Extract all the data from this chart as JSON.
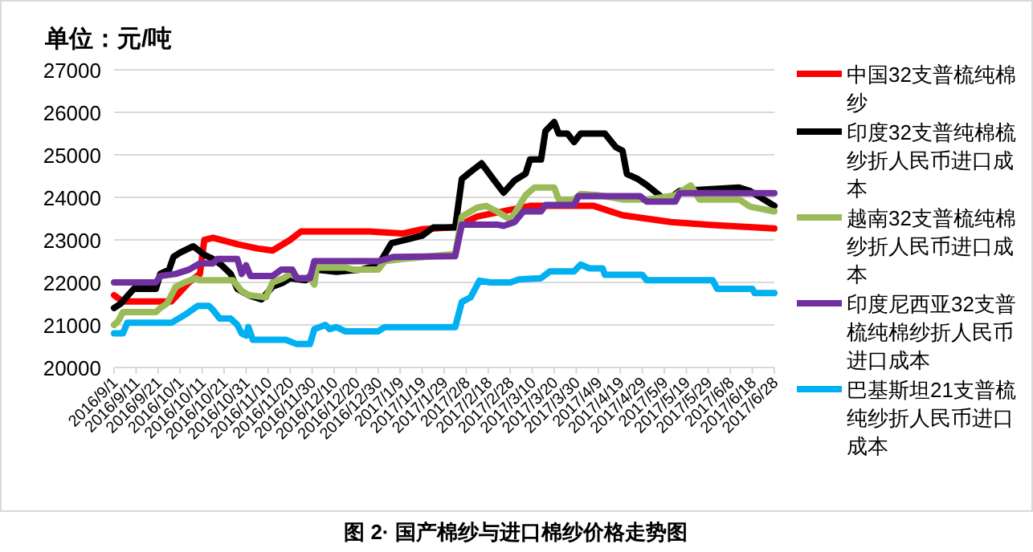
{
  "chart_data": {
    "type": "line",
    "title": "图 2· 国产棉纱与进口棉纱价格走势图",
    "ylabel": "单位：元/吨",
    "xlim": [
      "2016-09-01",
      "2017-06-28"
    ],
    "xticks": [
      {
        "value": "2016-09-01",
        "label": "2016/9/1"
      },
      {
        "value": "2016-09-11",
        "label": "2016/9/11"
      },
      {
        "value": "2016-09-21",
        "label": "2016/9/21"
      },
      {
        "value": "2016-10-01",
        "label": "2016/10/1"
      },
      {
        "value": "2016-10-11",
        "label": "2016/10/11"
      },
      {
        "value": "2016-10-21",
        "label": "2016/10/21"
      },
      {
        "value": "2016-10-31",
        "label": "2016/10/31"
      },
      {
        "value": "2016-11-10",
        "label": "2016/11/10"
      },
      {
        "value": "2016-11-20",
        "label": "2016/11/20"
      },
      {
        "value": "2016-11-30",
        "label": "2016/11/30"
      },
      {
        "value": "2016-12-10",
        "label": "2016/12/10"
      },
      {
        "value": "2016-12-20",
        "label": "2016/12/20"
      },
      {
        "value": "2016-12-30",
        "label": "2016/12/30"
      },
      {
        "value": "2017-01-09",
        "label": "2017/1/9"
      },
      {
        "value": "2017-01-19",
        "label": "2017/1/19"
      },
      {
        "value": "2017-01-29",
        "label": "2017/1/29"
      },
      {
        "value": "2017-02-08",
        "label": "2017/2/8"
      },
      {
        "value": "2017-02-18",
        "label": "2017/2/18"
      },
      {
        "value": "2017-02-28",
        "label": "2017/2/28"
      },
      {
        "value": "2017-03-10",
        "label": "2017/3/10"
      },
      {
        "value": "2017-03-20",
        "label": "2017/3/20"
      },
      {
        "value": "2017-03-30",
        "label": "2017/3/30"
      },
      {
        "value": "2017-04-09",
        "label": "2017/4/9"
      },
      {
        "value": "2017-04-19",
        "label": "2017/4/19"
      },
      {
        "value": "2017-04-29",
        "label": "2017/4/29"
      },
      {
        "value": "2017-05-09",
        "label": "2017/5/9"
      },
      {
        "value": "2017-05-19",
        "label": "2017/5/19"
      },
      {
        "value": "2017-05-29",
        "label": "2017/5/29"
      },
      {
        "value": "2017-06-08",
        "label": "2017/6/8"
      },
      {
        "value": "2017-06-18",
        "label": "2017/6/18"
      },
      {
        "value": "2017-06-28",
        "label": "2017/6/28"
      }
    ],
    "ylim": [
      20000,
      27000
    ],
    "yticks": [
      20000,
      21000,
      22000,
      23000,
      24000,
      25000,
      26000,
      27000
    ],
    "grid": "y",
    "legend": "right",
    "marker": "none",
    "line_style": "solid",
    "series": [
      {
        "name": "中国32支普梳纯棉纱",
        "color": "#ff0000",
        "x": [
          "2016-09-01",
          "2016-09-05",
          "2016-09-27",
          "2016-10-05",
          "2016-10-10",
          "2016-10-12",
          "2016-10-16",
          "2016-10-27",
          "2016-11-05",
          "2016-11-12",
          "2016-11-20",
          "2016-11-25",
          "2016-12-26",
          "2017-01-10",
          "2017-01-19",
          "2017-02-03",
          "2017-02-13",
          "2017-03-09",
          "2017-04-07",
          "2017-04-20",
          "2017-05-12",
          "2017-05-31",
          "2017-06-28"
        ],
        "values": [
          21700,
          21550,
          21550,
          22000,
          22200,
          23000,
          23050,
          22900,
          22800,
          22750,
          23000,
          23200,
          23200,
          23150,
          23250,
          23300,
          23550,
          23800,
          23800,
          23580,
          23420,
          23350,
          23270
        ]
      },
      {
        "name": "印度32支普纯棉梳纱折人民币进口成本",
        "color": "#000000",
        "x": [
          "2016-09-01",
          "2016-09-04",
          "2016-09-10",
          "2016-09-20",
          "2016-09-22",
          "2016-09-26",
          "2016-09-28",
          "2016-10-01",
          "2016-10-07",
          "2016-10-12",
          "2016-10-16",
          "2016-10-20",
          "2016-10-24",
          "2016-10-27",
          "2016-11-01",
          "2016-11-07",
          "2016-11-12",
          "2016-11-17",
          "2016-11-20",
          "2016-11-27",
          "2016-12-02",
          "2016-12-11",
          "2016-12-22",
          "2016-12-30",
          "2017-01-05",
          "2017-01-19",
          "2017-01-24",
          "2017-02-03",
          "2017-02-06",
          "2017-02-10",
          "2017-02-15",
          "2017-02-20",
          "2017-02-25",
          "2017-03-02",
          "2017-03-07",
          "2017-03-09",
          "2017-03-14",
          "2017-03-16",
          "2017-03-20",
          "2017-03-22",
          "2017-03-26",
          "2017-03-29",
          "2017-04-01",
          "2017-04-12",
          "2017-04-17",
          "2017-04-20",
          "2017-04-22",
          "2017-04-27",
          "2017-05-01",
          "2017-05-08",
          "2017-05-12",
          "2017-05-16",
          "2017-06-12",
          "2017-06-17",
          "2017-06-28"
        ],
        "values": [
          21400,
          21500,
          21850,
          21850,
          22200,
          22300,
          22600,
          22700,
          22850,
          22650,
          22550,
          22400,
          22200,
          21850,
          21700,
          21600,
          21900,
          22000,
          22100,
          22050,
          22300,
          22250,
          22300,
          22400,
          22920,
          23100,
          23290,
          23290,
          24430,
          24600,
          24800,
          24450,
          24110,
          24400,
          24560,
          24890,
          24890,
          25560,
          25770,
          25500,
          25500,
          25300,
          25500,
          25500,
          25180,
          25100,
          24550,
          24430,
          24290,
          24000,
          24000,
          24150,
          24230,
          24150,
          23800
        ]
      },
      {
        "name": "越南32支普梳纯棉纱折人民币进口成本",
        "color": "#9bbb59",
        "x": [
          "2016-09-01",
          "2016-09-03",
          "2016-09-05",
          "2016-09-20",
          "2016-09-22",
          "2016-09-25",
          "2016-09-29",
          "2016-10-03",
          "2016-10-08",
          "2016-10-10",
          "2016-10-25",
          "2016-10-29",
          "2016-11-01",
          "2016-11-09",
          "2016-11-12",
          "2016-11-17",
          "2016-11-20",
          "2016-11-24",
          "2016-11-29",
          "2016-12-01",
          "2016-12-02",
          "2016-12-15",
          "2016-12-19",
          "2016-12-30",
          "2017-01-02",
          "2017-01-10",
          "2017-02-03",
          "2017-02-06",
          "2017-02-13",
          "2017-02-17",
          "2017-02-22",
          "2017-02-28",
          "2017-03-02",
          "2017-03-07",
          "2017-03-11",
          "2017-03-20",
          "2017-03-22",
          "2017-03-29",
          "2017-04-01",
          "2017-04-09",
          "2017-04-15",
          "2017-04-20",
          "2017-05-01",
          "2017-05-08",
          "2017-05-14",
          "2017-05-21",
          "2017-05-25",
          "2017-06-12",
          "2017-06-17",
          "2017-06-28"
        ],
        "values": [
          21000,
          21100,
          21300,
          21300,
          21400,
          21500,
          21900,
          22000,
          22100,
          22050,
          22050,
          21800,
          21700,
          21650,
          22000,
          22100,
          22200,
          22100,
          22100,
          21950,
          22350,
          22350,
          22300,
          22300,
          22500,
          22550,
          22670,
          23550,
          23760,
          23800,
          23670,
          23480,
          23620,
          24050,
          24230,
          24230,
          23950,
          23950,
          24080,
          24050,
          24000,
          23950,
          23950,
          24000,
          24050,
          24280,
          23950,
          23950,
          23780,
          23670
        ]
      },
      {
        "name": "印度尼西亚32支普梳纯棉纱折人民币进口成本",
        "color": "#7030a0",
        "x": [
          "2016-09-01",
          "2016-09-20",
          "2016-09-22",
          "2016-09-29",
          "2016-10-05",
          "2016-10-10",
          "2016-10-16",
          "2016-10-18",
          "2016-10-27",
          "2016-10-29",
          "2016-10-31",
          "2016-11-02",
          "2016-11-12",
          "2016-11-16",
          "2016-11-21",
          "2016-11-23",
          "2016-11-29",
          "2016-12-01",
          "2016-12-30",
          "2017-01-06",
          "2017-02-03",
          "2017-02-06",
          "2017-02-22",
          "2017-02-25",
          "2017-03-02",
          "2017-03-06",
          "2017-03-14",
          "2017-03-16",
          "2017-03-29",
          "2017-03-31",
          "2017-04-28",
          "2017-05-01",
          "2017-05-14",
          "2017-05-16",
          "2017-06-28"
        ],
        "values": [
          22000,
          22000,
          22150,
          22200,
          22300,
          22450,
          22450,
          22550,
          22550,
          22200,
          22400,
          22150,
          22150,
          22300,
          22300,
          22100,
          22100,
          22500,
          22500,
          22600,
          22620,
          23360,
          23360,
          23330,
          23420,
          23670,
          23670,
          23820,
          23820,
          24030,
          24030,
          23900,
          23900,
          24100,
          24100
        ]
      },
      {
        "name": "巴基斯坦21支普梳纯纱折人民币进口成本",
        "color": "#00b0f0",
        "x": [
          "2016-09-01",
          "2016-09-05",
          "2016-09-07",
          "2016-09-27",
          "2016-10-02",
          "2016-10-05",
          "2016-10-09",
          "2016-10-14",
          "2016-10-16",
          "2016-10-19",
          "2016-10-24",
          "2016-10-27",
          "2016-10-29",
          "2016-10-31",
          "2016-11-01",
          "2016-11-03",
          "2016-11-18",
          "2016-11-23",
          "2016-11-29",
          "2016-12-01",
          "2016-12-06",
          "2016-12-08",
          "2016-12-11",
          "2016-12-15",
          "2016-12-30",
          "2017-01-02",
          "2017-02-03",
          "2017-02-06",
          "2017-02-10",
          "2017-02-14",
          "2017-02-19",
          "2017-02-28",
          "2017-03-04",
          "2017-03-14",
          "2017-03-18",
          "2017-03-29",
          "2017-04-01",
          "2017-04-05",
          "2017-04-11",
          "2017-04-12",
          "2017-04-29",
          "2017-05-01",
          "2017-05-31",
          "2017-06-02",
          "2017-06-18",
          "2017-06-19",
          "2017-06-28"
        ],
        "values": [
          20800,
          20800,
          21050,
          21050,
          21200,
          21300,
          21450,
          21450,
          21350,
          21150,
          21150,
          21000,
          20800,
          20750,
          20950,
          20650,
          20650,
          20550,
          20550,
          20900,
          21000,
          20900,
          20950,
          20850,
          20850,
          20950,
          20950,
          21540,
          21650,
          22040,
          22000,
          22000,
          22070,
          22100,
          22260,
          22260,
          22420,
          22330,
          22330,
          22180,
          22180,
          22050,
          22050,
          21850,
          21850,
          21750,
          21750
        ]
      }
    ]
  }
}
